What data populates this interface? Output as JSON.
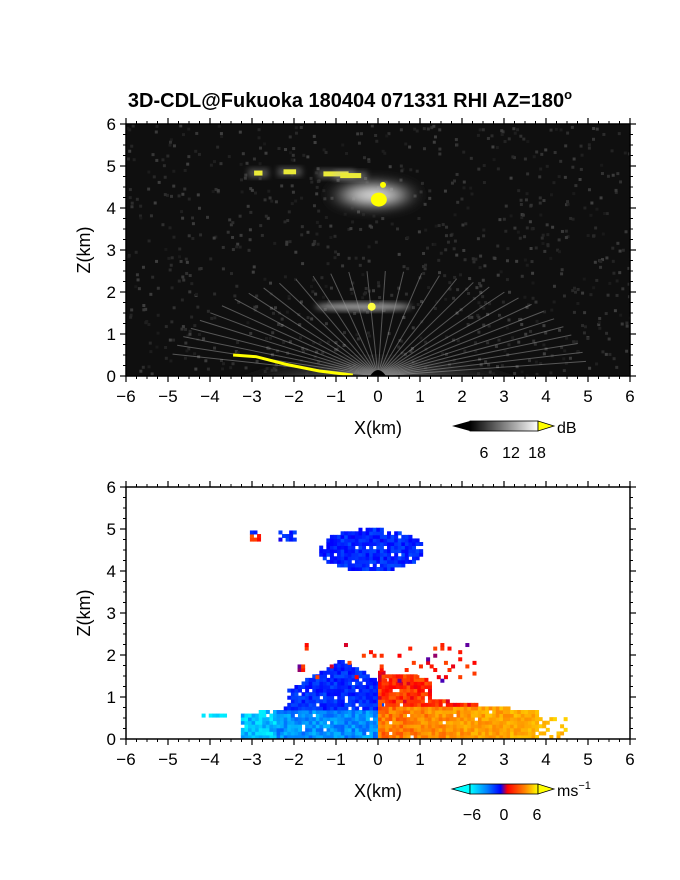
{
  "chart_data": {
    "title": "3D-CDL@Fukuoka 180404 071331 RHI AZ=180",
    "title_superscript": "o",
    "panels": [
      {
        "type": "heatmap",
        "quantity": "backscatter intensity",
        "xlabel": "X(km)",
        "ylabel": "Z(km)",
        "xlim": [
          -6,
          6
        ],
        "ylim": [
          0,
          6
        ],
        "xticks": [
          -6,
          -5,
          -4,
          -3,
          -2,
          -1,
          0,
          1,
          2,
          3,
          4,
          5,
          6
        ],
        "yticks": [
          0,
          1,
          2,
          3,
          4,
          5,
          6
        ],
        "background_color": "#0f0f0f",
        "colorbar": {
          "unit": "dB",
          "ticks": [
            6,
            12,
            18
          ],
          "low_color": "#000000",
          "high_color": "#ffff00"
        },
        "features": [
          {
            "x": [
              -1.5,
              1.0
            ],
            "z": [
              4.0,
              4.8
            ],
            "level_db": 14,
            "peak_db": 18
          },
          {
            "x": [
              -3.0,
              -1.2
            ],
            "z": [
              4.75,
              4.9
            ],
            "level_db": 18
          },
          {
            "x": [
              -3.0,
              3.5
            ],
            "z": [
              0.0,
              1.2
            ],
            "level_db": 12
          },
          {
            "x": [
              -1.5,
              0.8
            ],
            "z": [
              1.55,
              1.75
            ],
            "level_db": 10
          },
          {
            "x": [
              -3.5,
              -0.5
            ],
            "z": [
              0.0,
              0.5
            ],
            "level_db": 18
          }
        ]
      },
      {
        "type": "heatmap",
        "quantity": "radial velocity",
        "xlabel": "X(km)",
        "ylabel": "Z(km)",
        "xlim": [
          -6,
          6
        ],
        "ylim": [
          0,
          6
        ],
        "xticks": [
          -6,
          -5,
          -4,
          -3,
          -2,
          -1,
          0,
          1,
          2,
          3,
          4,
          5,
          6
        ],
        "yticks": [
          0,
          1,
          2,
          3,
          4,
          5,
          6
        ],
        "background_color": "#ffffff",
        "colorbar": {
          "unit": "ms",
          "unit_superscript": "−1",
          "ticks": [
            "−6",
            "0",
            "6"
          ],
          "low_color": "#00ffff",
          "high_color": "#ffff00"
        },
        "features": [
          {
            "x": [
              -1.5,
              1.0
            ],
            "z": [
              4.0,
              4.95
            ],
            "velocity_ms": -6
          },
          {
            "x": [
              -3.0,
              -2.0
            ],
            "z": [
              4.7,
              4.95
            ],
            "velocity_ms": -6
          },
          {
            "x": [
              -4.2,
              0.0
            ],
            "z": [
              0.0,
              2.2
            ],
            "velocity_ms": -5
          },
          {
            "x": [
              0.0,
              4.5
            ],
            "z": [
              0.0,
              2.2
            ],
            "velocity_ms": 4
          }
        ]
      }
    ]
  }
}
